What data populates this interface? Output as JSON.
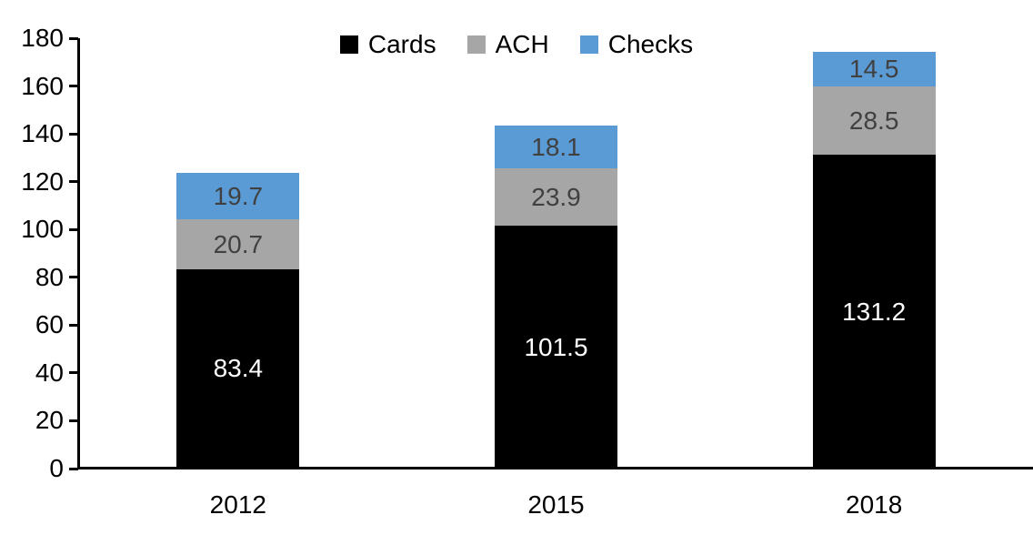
{
  "chart_data": {
    "type": "bar",
    "stacked": true,
    "categories": [
      "2012",
      "2015",
      "2018"
    ],
    "series": [
      {
        "name": "Cards",
        "color": "#000000",
        "label_color": "#ffffff",
        "values": [
          83.4,
          101.5,
          131.2
        ]
      },
      {
        "name": "ACH",
        "color": "#a6a6a6",
        "label_color": "#404040",
        "values": [
          20.7,
          23.9,
          28.5
        ]
      },
      {
        "name": "Checks",
        "color": "#5b9bd5",
        "label_color": "#404040",
        "values": [
          19.7,
          18.1,
          14.5
        ]
      }
    ],
    "data_labels": [
      [
        "83.4",
        "101.5",
        "131.2"
      ],
      [
        "20.7",
        "23.9",
        "28.5"
      ],
      [
        "19.7",
        "18.1",
        "14.5"
      ]
    ],
    "title": "",
    "xlabel": "",
    "ylabel": "",
    "ylim": [
      0,
      180
    ],
    "yticks": [
      "0",
      "20",
      "40",
      "60",
      "80",
      "100",
      "120",
      "140",
      "160",
      "180"
    ],
    "grid": false,
    "legend_position": "top-center",
    "legend": [
      "Cards",
      "ACH",
      "Checks"
    ],
    "axis_color": "#000000"
  }
}
